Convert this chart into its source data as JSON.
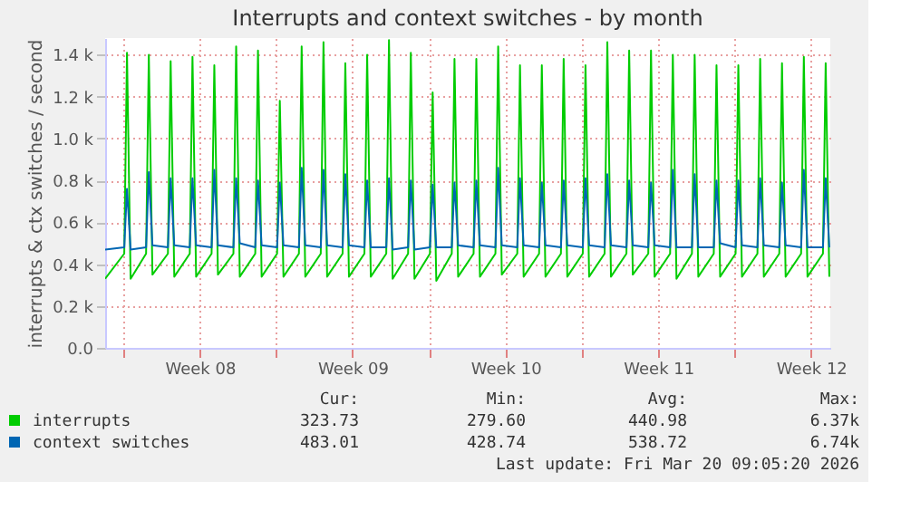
{
  "chart_data": {
    "type": "line",
    "title": "Interrupts and context switches - by month",
    "ylabel": "interrupts & ctx switches / second",
    "x": [
      "2026-02-15T04:00",
      "2026-02-16T01:00",
      "2026-02-16T04:00",
      "2026-02-16T08:00",
      "2026-02-17T01:00",
      "2026-02-17T04:00",
      "2026-02-17T08:00",
      "2026-02-18T01:00",
      "2026-02-18T04:00",
      "2026-02-18T08:00",
      "2026-02-19T01:00",
      "2026-02-19T04:00",
      "2026-02-19T08:00",
      "2026-02-20T01:00",
      "2026-02-20T04:00",
      "2026-02-20T08:00",
      "2026-02-21T01:00",
      "2026-02-21T04:00",
      "2026-02-21T08:00",
      "2026-02-22T01:00",
      "2026-02-22T04:00",
      "2026-02-22T08:00",
      "2026-02-23T01:00",
      "2026-02-23T04:00",
      "2026-02-23T08:00",
      "2026-02-24T01:00",
      "2026-02-24T04:00",
      "2026-02-24T08:00",
      "2026-02-25T01:00",
      "2026-02-25T04:00",
      "2026-02-25T08:00",
      "2026-02-26T01:00",
      "2026-02-26T04:00",
      "2026-02-26T08:00",
      "2026-02-27T01:00",
      "2026-02-27T04:00",
      "2026-02-27T08:00",
      "2026-02-28T01:00",
      "2026-02-28T04:00",
      "2026-02-28T08:00",
      "2026-03-01T01:00",
      "2026-03-01T04:00",
      "2026-03-01T08:00",
      "2026-03-02T01:00",
      "2026-03-02T04:00",
      "2026-03-02T08:00",
      "2026-03-03T01:00",
      "2026-03-03T04:00",
      "2026-03-03T08:00",
      "2026-03-04T01:00",
      "2026-03-04T04:00",
      "2026-03-04T08:00",
      "2026-03-05T01:00",
      "2026-03-05T04:00",
      "2026-03-05T08:00",
      "2026-03-06T01:00",
      "2026-03-06T04:00",
      "2026-03-06T08:00",
      "2026-03-07T01:00",
      "2026-03-07T04:00",
      "2026-03-07T08:00",
      "2026-03-08T01:00",
      "2026-03-08T04:00",
      "2026-03-08T08:00",
      "2026-03-09T01:00",
      "2026-03-09T04:00",
      "2026-03-09T08:00",
      "2026-03-10T01:00",
      "2026-03-10T04:00",
      "2026-03-10T08:00",
      "2026-03-11T01:00",
      "2026-03-11T04:00",
      "2026-03-11T08:00",
      "2026-03-12T01:00",
      "2026-03-12T04:00",
      "2026-03-12T08:00",
      "2026-03-13T01:00",
      "2026-03-13T04:00",
      "2026-03-13T08:00",
      "2026-03-14T01:00",
      "2026-03-14T04:00",
      "2026-03-14T08:00",
      "2026-03-15T01:00",
      "2026-03-15T04:00",
      "2026-03-15T08:00",
      "2026-03-16T01:00",
      "2026-03-16T04:00",
      "2026-03-16T08:00",
      "2026-03-17T01:00",
      "2026-03-17T04:00",
      "2026-03-17T08:00",
      "2026-03-18T01:00",
      "2026-03-18T04:00",
      "2026-03-18T08:00",
      "2026-03-19T01:00",
      "2026-03-19T04:00",
      "2026-03-19T08:00",
      "2026-03-20T01:00",
      "2026-03-20T04:00",
      "2026-03-20T08:00"
    ],
    "series": [
      {
        "name": "interrupts",
        "color": "#00cc00",
        "values": [
          330,
          450,
          1410,
          330,
          450,
          1400,
          350,
          450,
          1370,
          340,
          450,
          1390,
          340,
          450,
          1350,
          350,
          450,
          1440,
          340,
          450,
          1420,
          340,
          450,
          1180,
          340,
          450,
          1440,
          340,
          450,
          1460,
          340,
          450,
          1360,
          340,
          450,
          1400,
          340,
          450,
          1470,
          330,
          450,
          1410,
          330,
          450,
          1220,
          320,
          450,
          1380,
          340,
          450,
          1380,
          340,
          450,
          1440,
          350,
          450,
          1350,
          340,
          450,
          1350,
          340,
          450,
          1380,
          340,
          450,
          1350,
          340,
          450,
          1460,
          340,
          450,
          1420,
          350,
          450,
          1420,
          340,
          450,
          1400,
          330,
          450,
          1400,
          340,
          450,
          1350,
          340,
          450,
          1350,
          340,
          450,
          1380,
          340,
          450,
          1360,
          340,
          450,
          1390,
          340,
          450,
          1360,
          340
        ]
      },
      {
        "name": "context switches",
        "color": "#0066b3",
        "values": [
          470,
          480,
          760,
          470,
          480,
          840,
          490,
          480,
          810,
          490,
          480,
          810,
          490,
          480,
          850,
          490,
          480,
          810,
          500,
          480,
          800,
          490,
          480,
          790,
          490,
          480,
          860,
          490,
          480,
          850,
          490,
          480,
          830,
          490,
          480,
          800,
          480,
          480,
          810,
          470,
          480,
          800,
          470,
          480,
          780,
          480,
          480,
          790,
          490,
          480,
          800,
          490,
          480,
          860,
          490,
          480,
          810,
          490,
          480,
          790,
          490,
          480,
          800,
          490,
          480,
          810,
          490,
          480,
          830,
          490,
          480,
          800,
          490,
          480,
          790,
          490,
          480,
          850,
          480,
          480,
          830,
          480,
          480,
          800,
          500,
          480,
          800,
          490,
          480,
          810,
          490,
          480,
          790,
          490,
          480,
          850,
          480,
          480,
          810,
          480
        ]
      }
    ],
    "xlim": [
      "2026-02-15T04:00",
      "2026-03-20T09:05"
    ],
    "xticks": [
      {
        "value": "2026-02-16",
        "label": null
      },
      {
        "value": "2026-02-19T12:00",
        "label": "Week 08"
      },
      {
        "value": "2026-02-23",
        "label": null
      },
      {
        "value": "2026-02-26T12:00",
        "label": "Week 09"
      },
      {
        "value": "2026-03-02",
        "label": null
      },
      {
        "value": "2026-03-05T12:00",
        "label": "Week 10"
      },
      {
        "value": "2026-03-09",
        "label": null
      },
      {
        "value": "2026-03-12T12:00",
        "label": "Week 11"
      },
      {
        "value": "2026-03-16",
        "label": null
      },
      {
        "value": "2026-03-19T12:00",
        "label": "Week 12"
      }
    ],
    "ylim": [
      0,
      1480
    ],
    "yticks": [
      {
        "value": 0,
        "label": "0.0"
      },
      {
        "value": 200,
        "label": "0.2 k"
      },
      {
        "value": 400,
        "label": "0.4 k"
      },
      {
        "value": 600,
        "label": "0.6 k"
      },
      {
        "value": 800,
        "label": "0.8 k"
      },
      {
        "value": 1000,
        "label": "1.0 k"
      },
      {
        "value": 1200,
        "label": "1.2 k"
      },
      {
        "value": 1400,
        "label": "1.4 k"
      }
    ],
    "grid": true,
    "legend": "bottom",
    "line_style": "solid",
    "marker": "none",
    "annotations": [
      "Cur:",
      "Min:",
      "Avg:",
      "Max:",
      "323.73",
      "279.60",
      "440.98",
      "6.37k",
      "483.01",
      "428.74",
      "538.72",
      "6.74k",
      "Last update: Fri Mar 20 09:05:20 2026"
    ]
  }
}
